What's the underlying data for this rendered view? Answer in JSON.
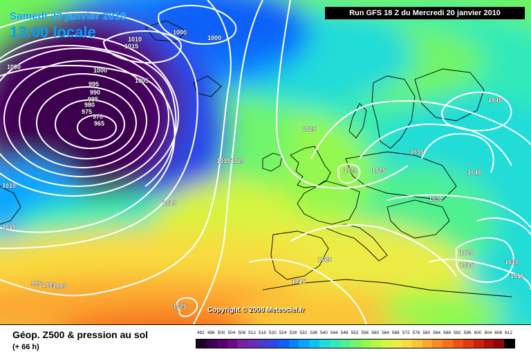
{
  "header": {
    "date": "Samedi 23 janvier 2010",
    "local_time": "13:00 locale",
    "run_info": "Run GFS 18 Z du Mercredi 20 janvier 2010"
  },
  "copyright": "Copyright © 2008 Meteociel.fr",
  "footer": {
    "product_title": "Géop. Z500 & pression au sol",
    "lead_time": "(+ 66 h)"
  },
  "legend": {
    "values": [
      "492",
      "496",
      "500",
      "504",
      "508",
      "512",
      "516",
      "520",
      "524",
      "528",
      "532",
      "536",
      "540",
      "544",
      "548",
      "552",
      "556",
      "560",
      "564",
      "568",
      "572",
      "576",
      "580",
      "584",
      "588",
      "592",
      "596",
      "600",
      "604",
      "608",
      "612"
    ],
    "colors": [
      "#1e0028",
      "#3c0050",
      "#55006e",
      "#6a0a86",
      "#7a1ea0",
      "#6a2ab8",
      "#4a3ad0",
      "#2a4ae6",
      "#1060f8",
      "#0a82ff",
      "#08a4ff",
      "#0cc4f0",
      "#20dcd8",
      "#30eab8",
      "#50f090",
      "#70f46c",
      "#94f850",
      "#b6f840",
      "#d6f440",
      "#ecec44",
      "#f8dc40",
      "#fcc438",
      "#fca830",
      "#fa8c26",
      "#f6701e",
      "#ee5416",
      "#e03a10",
      "#cc220c",
      "#b0100a",
      "#900808",
      "#000000"
    ]
  },
  "map": {
    "isobar_labels": [
      {
        "text": "1010"
      },
      {
        "text": "1015"
      },
      {
        "text": "1000"
      },
      {
        "text": "1000"
      },
      {
        "text": "1000"
      },
      {
        "text": "1000"
      },
      {
        "text": "1005"
      },
      {
        "text": "995"
      },
      {
        "text": "990"
      },
      {
        "text": "985"
      },
      {
        "text": "980"
      },
      {
        "text": "975"
      },
      {
        "text": "970"
      },
      {
        "text": "965"
      },
      {
        "text": "1025"
      },
      {
        "text": "1010"
      },
      {
        "text": "1020"
      },
      {
        "text": "1020"
      },
      {
        "text": "1025"
      },
      {
        "text": "1035"
      },
      {
        "text": "1045"
      },
      {
        "text": "1040"
      },
      {
        "text": "1030"
      },
      {
        "text": "1010"
      },
      {
        "text": "1010"
      },
      {
        "text": "1010"
      },
      {
        "text": "1020"
      },
      {
        "text": "1015"
      },
      {
        "text": "995"
      },
      {
        "text": "1000"
      },
      {
        "text": "1005"
      },
      {
        "text": "1025"
      },
      {
        "text": "1020"
      },
      {
        "text": "1015"
      },
      {
        "text": "1010"
      },
      {
        "text": "1015"
      }
    ]
  }
}
